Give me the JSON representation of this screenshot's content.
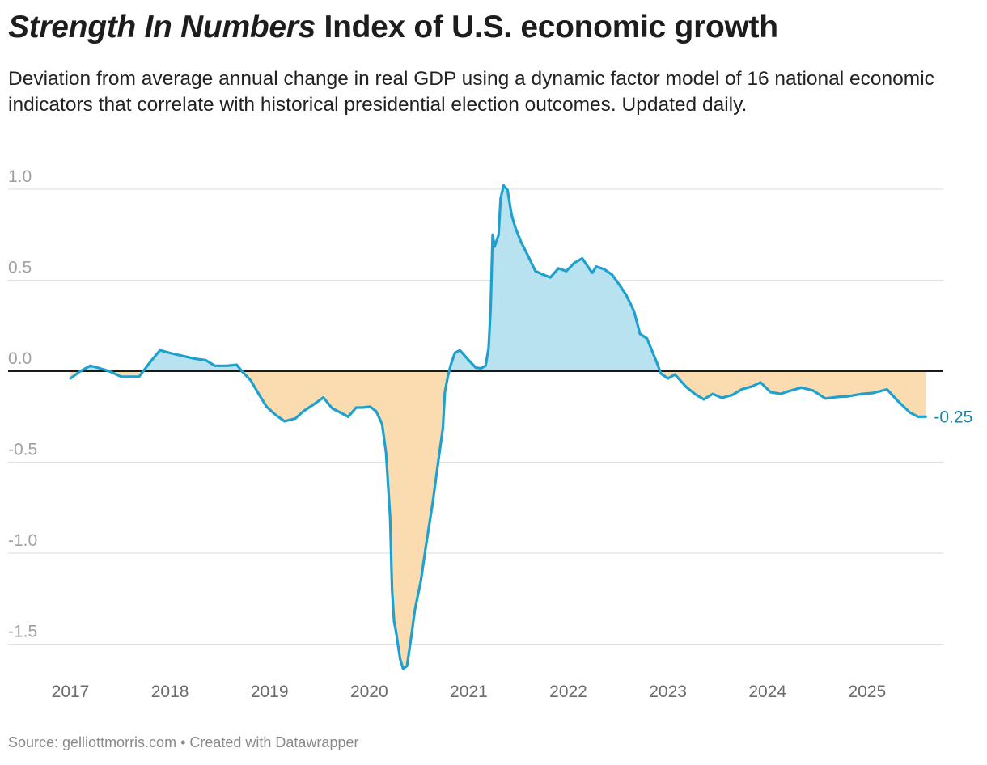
{
  "title": {
    "italic": "Strength In Numbers",
    "rest": " Index of U.S. economic growth"
  },
  "subtitle": "Deviation from average annual change in real GDP using a dynamic factor model of 16 national economic indicators that correlate with historical presidential election outcomes. Updated daily.",
  "source": "Source: gelliottmorris.com • Created with Datawrapper",
  "colors": {
    "line": "#1ea1cf",
    "positive_fill": "#b9e2f0",
    "negative_fill": "#fbdcb1",
    "label": "#1686ad",
    "zero_line": "#1a1a1a",
    "grid": "#e2e2e2"
  },
  "chart_data": {
    "type": "area",
    "title": "Strength In Numbers Index of U.S. economic growth",
    "xlabel": "",
    "ylabel": "",
    "xlim": [
      2016.9,
      2025.75
    ],
    "ylim": [
      -1.65,
      1.05
    ],
    "grid": true,
    "y_ticks": [
      1.0,
      0.5,
      0.0,
      -0.5,
      -1.0,
      -1.5
    ],
    "y_tick_labels": [
      "1.0",
      "0.5",
      "0.0",
      "-0.5",
      "-1.0",
      "-1.5"
    ],
    "x_ticks": [
      2017,
      2018,
      2019,
      2020,
      2021,
      2022,
      2023,
      2024,
      2025
    ],
    "x_tick_labels": [
      "2017",
      "2018",
      "2019",
      "2020",
      "2021",
      "2022",
      "2023",
      "2024",
      "2025"
    ],
    "end_label": "-0.25",
    "x": [
      2017.0,
      2017.1,
      2017.2,
      2017.27,
      2017.39,
      2017.51,
      2017.59,
      2017.69,
      2017.8,
      2017.9,
      2018.0,
      2018.12,
      2018.24,
      2018.36,
      2018.45,
      2018.57,
      2018.67,
      2018.73,
      2018.81,
      2018.89,
      2018.97,
      2019.06,
      2019.15,
      2019.26,
      2019.34,
      2019.45,
      2019.54,
      2019.63,
      2019.71,
      2019.79,
      2019.87,
      2019.93,
      2020.01,
      2020.07,
      2020.13,
      2020.17,
      2020.21,
      2020.23,
      2020.25,
      2020.27,
      2020.31,
      2020.34,
      2020.38,
      2020.42,
      2020.46,
      2020.52,
      2020.57,
      2020.64,
      2020.7,
      2020.74,
      2020.76,
      2020.79,
      2020.82,
      2020.86,
      2020.91,
      2020.96,
      2021.0,
      2021.07,
      2021.12,
      2021.17,
      2021.2,
      2021.22,
      2021.24,
      2021.26,
      2021.3,
      2021.32,
      2021.35,
      2021.39,
      2021.43,
      2021.47,
      2021.53,
      2021.59,
      2021.67,
      2021.75,
      2021.82,
      2021.9,
      2021.98,
      2022.06,
      2022.14,
      2022.24,
      2022.28,
      2022.36,
      2022.44,
      2022.5,
      2022.58,
      2022.66,
      2022.72,
      2022.79,
      2022.89,
      2022.93,
      2023.0,
      2023.07,
      2023.18,
      2023.27,
      2023.36,
      2023.45,
      2023.54,
      2023.65,
      2023.74,
      2023.84,
      2023.93,
      2024.03,
      2024.13,
      2024.21,
      2024.34,
      2024.46,
      2024.58,
      2024.7,
      2024.81,
      2024.95,
      2025.06,
      2025.2,
      2025.31,
      2025.43,
      2025.51,
      2025.59
    ],
    "y": [
      -0.04,
      0.0,
      0.03,
      0.02,
      0.0,
      -0.03,
      -0.03,
      -0.03,
      0.05,
      0.115,
      0.1,
      0.085,
      0.07,
      0.06,
      0.03,
      0.03,
      0.035,
      -0.005,
      -0.05,
      -0.125,
      -0.195,
      -0.24,
      -0.275,
      -0.26,
      -0.22,
      -0.18,
      -0.145,
      -0.205,
      -0.227,
      -0.25,
      -0.2,
      -0.2,
      -0.195,
      -0.22,
      -0.29,
      -0.45,
      -0.8,
      -1.2,
      -1.375,
      -1.43,
      -1.58,
      -1.635,
      -1.62,
      -1.47,
      -1.31,
      -1.15,
      -0.96,
      -0.715,
      -0.47,
      -0.315,
      -0.115,
      -0.03,
      0.035,
      0.1,
      0.115,
      0.085,
      0.06,
      0.02,
      0.015,
      0.03,
      0.13,
      0.35,
      0.75,
      0.685,
      0.75,
      0.95,
      1.02,
      0.995,
      0.86,
      0.785,
      0.705,
      0.64,
      0.55,
      0.53,
      0.515,
      0.565,
      0.55,
      0.595,
      0.62,
      0.54,
      0.575,
      0.56,
      0.53,
      0.485,
      0.42,
      0.33,
      0.205,
      0.18,
      0.045,
      -0.013,
      -0.04,
      -0.018,
      -0.085,
      -0.125,
      -0.155,
      -0.125,
      -0.147,
      -0.13,
      -0.1,
      -0.085,
      -0.062,
      -0.115,
      -0.125,
      -0.11,
      -0.09,
      -0.107,
      -0.15,
      -0.142,
      -0.138,
      -0.125,
      -0.12,
      -0.1,
      -0.165,
      -0.227,
      -0.25,
      -0.25
    ]
  }
}
